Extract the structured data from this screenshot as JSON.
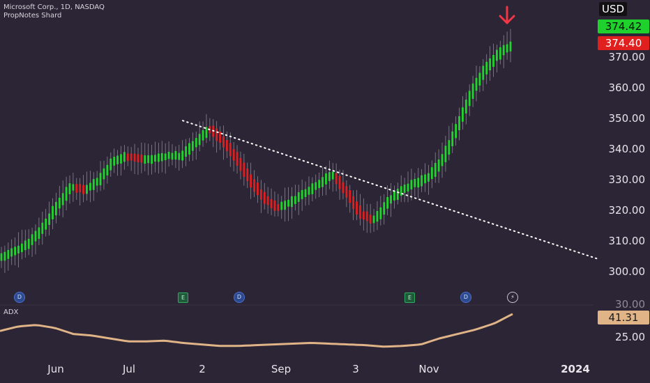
{
  "header": {
    "symbol_line": "Microsoft Corp., 1D, NASDAQ",
    "indicator_line": "PropNotes Shard"
  },
  "price_axis": {
    "currency": "USD",
    "ticks": [
      "370.00",
      "360.00",
      "350.00",
      "340.00",
      "330.00",
      "320.00",
      "310.00",
      "300.00"
    ],
    "last_price_green": "374.42",
    "last_price_red": "374.40"
  },
  "adx_panel": {
    "label": "ADX",
    "value": "41.31",
    "ticks": [
      "25.00"
    ],
    "partial_tick": "30.00"
  },
  "time_axis": {
    "labels": [
      "Jun",
      "Jul",
      "2",
      "Sep",
      "3",
      "Nov",
      "2024"
    ]
  },
  "events": {
    "dividend_letter": "D",
    "earnings_letter": "E",
    "flash_symbol": "⚡"
  },
  "colors": {
    "background": "#2b2535",
    "bull": "#22d42e",
    "bear": "#e02020",
    "adx_line": "#e0b487",
    "trend_line": "#ffffff",
    "arrow": "#f23645"
  },
  "chart_data": {
    "type": "candlestick",
    "title": "Microsoft Corp., 1D, NASDAQ",
    "ylim": [
      298,
      378
    ],
    "x_labels": [
      "Jun",
      "Jul",
      "2",
      "Sep",
      "3",
      "Nov",
      "2024"
    ],
    "series": [
      {
        "name": "Price",
        "values": [
          305,
          307,
          310,
          315,
          322,
          328,
          327,
          330,
          336,
          338,
          337,
          337,
          338,
          338,
          342,
          347,
          343,
          337,
          330,
          324,
          321,
          323,
          326,
          329,
          332,
          326,
          319,
          317,
          323,
          327,
          329,
          331,
          337,
          347,
          358,
          366,
          371,
          374.4
        ]
      },
      {
        "name": "ADX",
        "values": [
          30,
          33,
          34,
          32,
          28,
          27,
          25,
          23,
          23,
          23.5,
          22,
          21,
          20,
          20,
          20.5,
          21,
          21.5,
          22,
          21.5,
          21,
          20.5,
          19.5,
          20,
          21,
          25,
          28,
          31,
          35,
          41.31
        ]
      }
    ],
    "trend_line": {
      "from": [
        0.284,
        349.5
      ],
      "to": [
        0.92,
        304.5
      ]
    },
    "last_price": 374.42,
    "adx_last": 41.31
  }
}
